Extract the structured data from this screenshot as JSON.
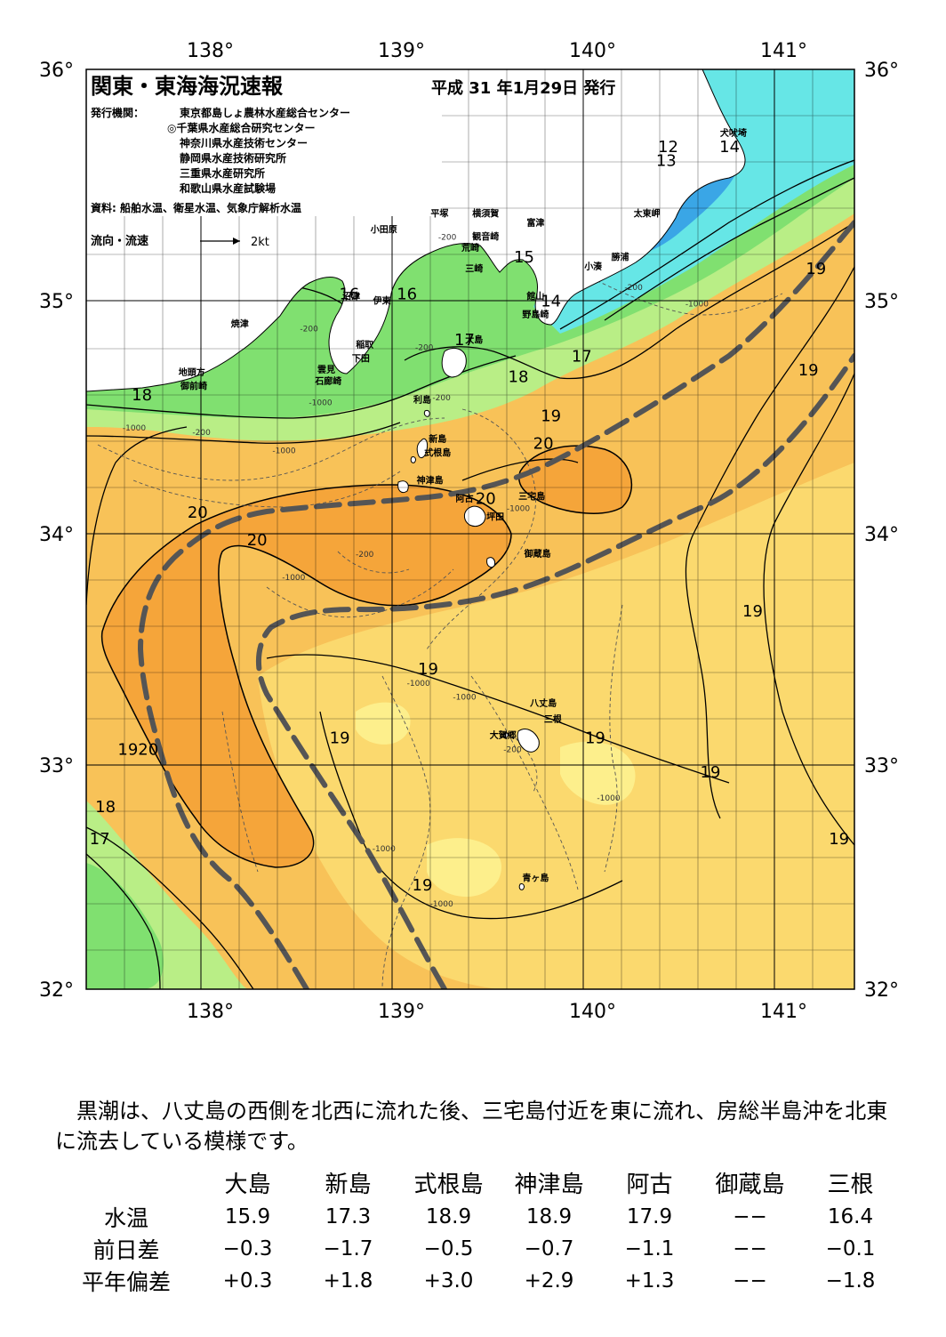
{
  "header": {
    "title": "関東・東海海況速報",
    "date": "平成 31 年1月29日 発行",
    "publisher_label": "発行機関：",
    "publishers": [
      "東京都島しょ農林水産総合センター",
      "◎千葉県水産総合研究センター",
      "神奈川県水産技術センター",
      "静岡県水産技術研究所",
      "三重県水産研究所",
      "和歌山県水産試験場"
    ],
    "source": "資料: 船舶水温、衛星水温、気象庁解析水温",
    "flow_legend": "流向・流速",
    "flow_unit": "2kt"
  },
  "axes": {
    "lon_labels": [
      "138°",
      "139°",
      "140°",
      "141°"
    ],
    "lat_labels": [
      "36°",
      "35°",
      "34°",
      "33°",
      "32°"
    ],
    "lon_range": [
      137.5,
      141.5
    ],
    "lat_range": [
      32,
      36
    ]
  },
  "colors": {
    "land": "#ffffff",
    "warm_core": "#f5a53a",
    "warm": "#f8c258",
    "mid": "#fbd96e",
    "pale": "#fdef8c",
    "green_light": "#b9ee86",
    "green": "#80e070",
    "cyan": "#66e6e6",
    "blue": "#3aa6e6",
    "kuroshio_axis": "#555555"
  },
  "places": [
    {
      "name": "犬吠埼",
      "lon": 140.87,
      "lat": 35.71
    },
    {
      "name": "太東岬",
      "lon": 140.42,
      "lat": 35.36
    },
    {
      "name": "勝浦",
      "lon": 140.28,
      "lat": 35.17
    },
    {
      "name": "小湊",
      "lon": 140.14,
      "lat": 35.13
    },
    {
      "name": "富津",
      "lon": 139.84,
      "lat": 35.32
    },
    {
      "name": "館山",
      "lon": 139.84,
      "lat": 35.0
    },
    {
      "name": "野島崎",
      "lon": 139.84,
      "lat": 34.92
    },
    {
      "name": "横須賀",
      "lon": 139.58,
      "lat": 35.36
    },
    {
      "name": "平塚",
      "lon": 139.34,
      "lat": 35.36
    },
    {
      "name": "観音崎",
      "lon": 139.58,
      "lat": 35.26
    },
    {
      "name": "荒崎",
      "lon": 139.5,
      "lat": 35.21
    },
    {
      "name": "三崎",
      "lon": 139.52,
      "lat": 35.12
    },
    {
      "name": "小田原",
      "lon": 139.05,
      "lat": 35.29
    },
    {
      "name": "伊東",
      "lon": 139.04,
      "lat": 34.98
    },
    {
      "name": "稲取",
      "lon": 138.95,
      "lat": 34.79
    },
    {
      "name": "下田",
      "lon": 138.93,
      "lat": 34.73
    },
    {
      "name": "雲見",
      "lon": 138.75,
      "lat": 34.68
    },
    {
      "name": "石廊崎",
      "lon": 138.76,
      "lat": 34.63
    },
    {
      "name": "沼津",
      "lon": 138.88,
      "lat": 35.0
    },
    {
      "name": "焼津",
      "lon": 138.3,
      "lat": 34.88
    },
    {
      "name": "地頭方",
      "lon": 138.05,
      "lat": 34.67
    },
    {
      "name": "御前崎",
      "lon": 138.06,
      "lat": 34.61
    },
    {
      "name": "大島",
      "lon": 139.52,
      "lat": 34.81
    },
    {
      "name": "利島",
      "lon": 139.25,
      "lat": 34.55
    },
    {
      "name": "新島",
      "lon": 139.33,
      "lat": 34.38
    },
    {
      "name": "式根島",
      "lon": 139.33,
      "lat": 34.32
    },
    {
      "name": "神津島",
      "lon": 139.29,
      "lat": 34.2
    },
    {
      "name": "三宅島",
      "lon": 139.82,
      "lat": 34.13
    },
    {
      "name": "阿古",
      "lon": 139.47,
      "lat": 34.12
    },
    {
      "name": "坪田",
      "lon": 139.63,
      "lat": 34.04
    },
    {
      "name": "御蔵島",
      "lon": 139.85,
      "lat": 33.88
    },
    {
      "name": "八丈島",
      "lon": 139.88,
      "lat": 33.23
    },
    {
      "name": "三根",
      "lon": 139.93,
      "lat": 33.16
    },
    {
      "name": "大賀郷",
      "lon": 139.67,
      "lat": 33.09
    },
    {
      "name": "青ヶ島",
      "lon": 139.84,
      "lat": 32.47
    }
  ],
  "isotherm_labels": [
    {
      "text": "12",
      "lon": 140.53,
      "lat": 35.64
    },
    {
      "text": "13",
      "lon": 140.52,
      "lat": 35.58
    },
    {
      "text": "14",
      "lon": 140.85,
      "lat": 35.64
    },
    {
      "text": "15",
      "lon": 139.78,
      "lat": 35.16
    },
    {
      "text": "14",
      "lon": 139.92,
      "lat": 34.97
    },
    {
      "text": "16",
      "lon": 138.87,
      "lat": 35.0
    },
    {
      "text": "16",
      "lon": 139.17,
      "lat": 35.0
    },
    {
      "text": "17",
      "lon": 139.47,
      "lat": 34.8
    },
    {
      "text": "17",
      "lon": 140.08,
      "lat": 34.73
    },
    {
      "text": "18",
      "lon": 139.75,
      "lat": 34.64
    },
    {
      "text": "18",
      "lon": 137.79,
      "lat": 34.56
    },
    {
      "text": "19",
      "lon": 139.92,
      "lat": 34.47
    },
    {
      "text": "20",
      "lon": 139.88,
      "lat": 34.35
    },
    {
      "text": "20",
      "lon": 138.08,
      "lat": 34.05
    },
    {
      "text": "20",
      "lon": 138.39,
      "lat": 33.93
    },
    {
      "text": "20",
      "lon": 139.58,
      "lat": 34.11
    },
    {
      "text": "19",
      "lon": 141.3,
      "lat": 35.11
    },
    {
      "text": "19",
      "lon": 141.26,
      "lat": 34.67
    },
    {
      "text": "19",
      "lon": 140.97,
      "lat": 33.62
    },
    {
      "text": "19",
      "lon": 139.28,
      "lat": 33.37
    },
    {
      "text": "19",
      "lon": 138.82,
      "lat": 33.07
    },
    {
      "text": "19",
      "lon": 140.15,
      "lat": 33.07
    },
    {
      "text": "19",
      "lon": 140.75,
      "lat": 32.92
    },
    {
      "text": "19",
      "lon": 141.42,
      "lat": 32.63
    },
    {
      "text": "19",
      "lon": 139.25,
      "lat": 32.43
    },
    {
      "text": "1920",
      "lon": 137.77,
      "lat": 33.02
    },
    {
      "text": "18",
      "lon": 137.6,
      "lat": 32.77
    },
    {
      "text": "17",
      "lon": 137.57,
      "lat": 32.63
    }
  ],
  "depth_labels": [
    {
      "text": "-200",
      "lon": 139.38,
      "lat": 35.26
    },
    {
      "text": "-200",
      "lon": 140.35,
      "lat": 35.04
    },
    {
      "text": "-1000",
      "lon": 140.68,
      "lat": 34.97
    },
    {
      "text": "-200",
      "lon": 138.66,
      "lat": 34.86
    },
    {
      "text": "-200",
      "lon": 139.26,
      "lat": 34.78
    },
    {
      "text": "-200",
      "lon": 139.35,
      "lat": 34.56
    },
    {
      "text": "-1000",
      "lon": 138.72,
      "lat": 34.54
    },
    {
      "text": "-1000",
      "lon": 137.75,
      "lat": 34.43
    },
    {
      "text": "-200",
      "lon": 138.1,
      "lat": 34.41
    },
    {
      "text": "-1000",
      "lon": 138.53,
      "lat": 34.33
    },
    {
      "text": "-1000",
      "lon": 139.75,
      "lat": 34.08
    },
    {
      "text": "-200",
      "lon": 138.95,
      "lat": 33.88
    },
    {
      "text": "-1000",
      "lon": 138.58,
      "lat": 33.78
    },
    {
      "text": "-1000",
      "lon": 139.23,
      "lat": 33.32
    },
    {
      "text": "-1000",
      "lon": 139.47,
      "lat": 33.26
    },
    {
      "text": "-200",
      "lon": 139.72,
      "lat": 33.03
    },
    {
      "text": "-1000",
      "lon": 140.22,
      "lat": 32.82
    },
    {
      "text": "-1000",
      "lon": 139.05,
      "lat": 32.6
    },
    {
      "text": "-1000",
      "lon": 139.35,
      "lat": 32.36
    }
  ],
  "summary": "　黒潮は、八丈島の西側を北西に流れた後、三宅島付近を東に流れ、房総半島沖を北東に流去している模様です。",
  "table": {
    "columns": [
      "大島",
      "新島",
      "式根島",
      "神津島",
      "阿古",
      "御蔵島",
      "三根"
    ],
    "rows": [
      {
        "label": "水温",
        "values": [
          "15.9",
          "17.3",
          "18.9",
          "18.9",
          "17.9",
          "−−",
          "16.4"
        ]
      },
      {
        "label": "前日差",
        "values": [
          "−0.3",
          "−1.7",
          "−0.5",
          "−0.7",
          "−1.1",
          "−−",
          "−0.1"
        ]
      },
      {
        "label": "平年偏差",
        "values": [
          "+0.3",
          "+1.8",
          "+3.0",
          "+2.9",
          "+1.3",
          "−−",
          "−1.8"
        ]
      }
    ]
  }
}
